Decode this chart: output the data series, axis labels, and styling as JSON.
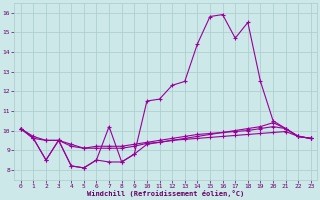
{
  "x": [
    0,
    1,
    2,
    3,
    4,
    5,
    6,
    7,
    8,
    9,
    10,
    11,
    12,
    13,
    14,
    15,
    16,
    17,
    18,
    19,
    20,
    21,
    22,
    23
  ],
  "line1": [
    10.1,
    9.6,
    8.5,
    9.5,
    8.2,
    8.1,
    8.5,
    10.2,
    8.4,
    8.8,
    11.5,
    11.6,
    12.3,
    12.5,
    14.4,
    15.8,
    15.9,
    14.7,
    15.5,
    12.5,
    10.5,
    10.1,
    9.7,
    9.6
  ],
  "line2": [
    10.1,
    9.6,
    9.5,
    9.5,
    9.2,
    9.1,
    9.2,
    9.2,
    9.2,
    9.3,
    9.4,
    9.5,
    9.6,
    9.7,
    9.8,
    9.85,
    9.9,
    9.95,
    10.0,
    10.1,
    10.2,
    10.1,
    9.7,
    9.6
  ],
  "line3": [
    10.1,
    9.7,
    9.5,
    9.5,
    9.3,
    9.1,
    9.1,
    9.1,
    9.1,
    9.2,
    9.35,
    9.4,
    9.5,
    9.55,
    9.6,
    9.65,
    9.7,
    9.75,
    9.8,
    9.85,
    9.9,
    9.95,
    9.7,
    9.6
  ],
  "line4": [
    10.1,
    9.6,
    8.5,
    9.5,
    8.2,
    8.1,
    8.5,
    8.4,
    8.4,
    8.8,
    9.3,
    9.4,
    9.5,
    9.6,
    9.7,
    9.8,
    9.9,
    10.0,
    10.1,
    10.2,
    10.4,
    10.1,
    9.7,
    9.6
  ],
  "line_color": "#990099",
  "bg_color": "#cce8e8",
  "grid_color": "#aacccc",
  "xlabel": "Windchill (Refroidissement éolien,°C)",
  "xlabel_color": "#660066",
  "tick_color": "#660066",
  "ylim": [
    7.5,
    16.5
  ],
  "yticks": [
    8,
    9,
    10,
    11,
    12,
    13,
    14,
    15,
    16
  ],
  "xlim": [
    -0.5,
    23.5
  ],
  "xticks": [
    0,
    1,
    2,
    3,
    4,
    5,
    6,
    7,
    8,
    9,
    10,
    11,
    12,
    13,
    14,
    15,
    16,
    17,
    18,
    19,
    20,
    21,
    22,
    23
  ]
}
